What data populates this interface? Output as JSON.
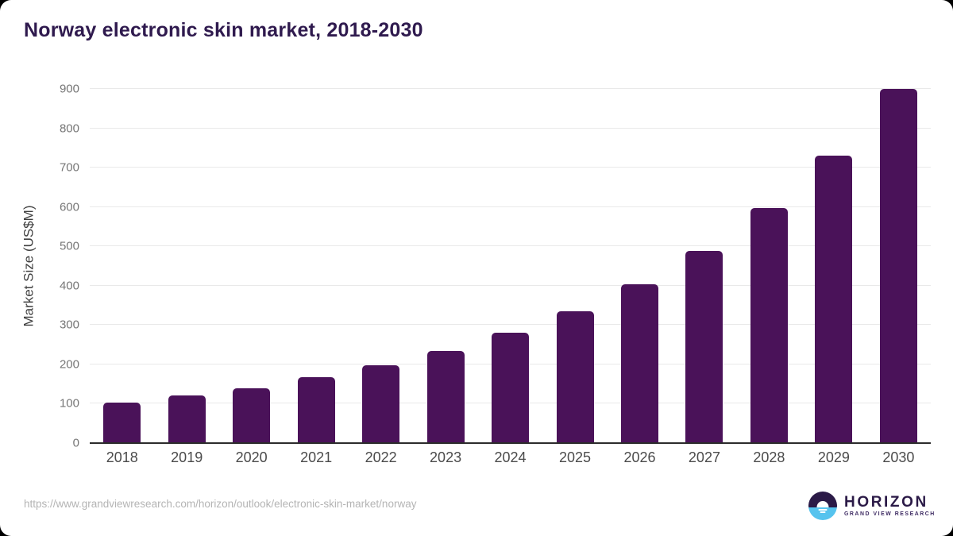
{
  "title": "Norway electronic skin market, 2018-2030",
  "chart_data": {
    "type": "bar",
    "categories": [
      "2018",
      "2019",
      "2020",
      "2021",
      "2022",
      "2023",
      "2024",
      "2025",
      "2026",
      "2027",
      "2028",
      "2029",
      "2030"
    ],
    "values": [
      103,
      121,
      140,
      168,
      198,
      235,
      280,
      335,
      404,
      488,
      597,
      731,
      900
    ],
    "title": "Norway electronic skin market, 2018-2030",
    "xlabel": "",
    "ylabel": "Market Size (US$M)",
    "ylim": [
      0,
      900
    ],
    "yticks": [
      0,
      100,
      200,
      300,
      400,
      500,
      600,
      700,
      800,
      900
    ],
    "grid": "horizontal-light",
    "legend": "none",
    "bar_color": "#4a1259"
  },
  "colors": {
    "background": "#ffffff",
    "page_behind_card": "#000000",
    "bar": "#4a1259",
    "title_text": "#2f1a4e",
    "axis_line": "#2c2c2c",
    "gridline": "#e9e9e9",
    "tick_text": "#767676",
    "x_label_text": "#4b4b4b",
    "url_text": "#b4b4b4",
    "logo_purple": "#2b1a47",
    "logo_blue": "#56c3ee"
  },
  "footer": {
    "source_url": "https://www.grandviewresearch.com/horizon/outlook/electronic-skin-market/norway",
    "logo": {
      "icon": "horizon-sunset-icon",
      "brand": "HORIZON",
      "sub_brand": "GRAND VIEW RESEARCH"
    }
  }
}
